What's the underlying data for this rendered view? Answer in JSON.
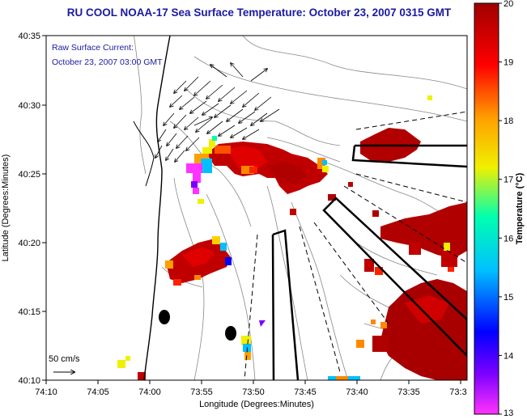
{
  "title": "RU COOL  NOAA-17  Sea Surface Temperature:  October 23, 2007 0315 GMT",
  "annotation": {
    "line1": "Raw Surface Current:",
    "line2": "October 23, 2007 03:00 GMT"
  },
  "scale_arrow_label": "50 cm/s",
  "x_axis": {
    "label": "Longitude (Degrees:Minutes)",
    "ticks": [
      "74:10",
      "74:05",
      "74:00",
      "73:55",
      "73:50",
      "73:45",
      "73:40",
      "73:35",
      "73:3"
    ]
  },
  "y_axis": {
    "label": "Latitude (Degrees:Minutes)",
    "ticks": [
      "40:35",
      "40:30",
      "40:25",
      "40:20",
      "40:15",
      "40:10"
    ]
  },
  "colorbar": {
    "label": "Temperature (°C)",
    "ticks": [
      "20",
      "19",
      "18",
      "17",
      "16",
      "15",
      "14",
      "13"
    ],
    "min": 13,
    "max": 20,
    "colors": [
      "#ff33ff",
      "#7a00ff",
      "#0000ff",
      "#00c0ff",
      "#00ffb0",
      "#f0f000",
      "#ffa000",
      "#ff0000",
      "#a00000"
    ]
  },
  "colors": {
    "title": "#1a1aa0",
    "warm": "#a00000",
    "mid": "#e60000",
    "orange": "#ff8800"
  }
}
